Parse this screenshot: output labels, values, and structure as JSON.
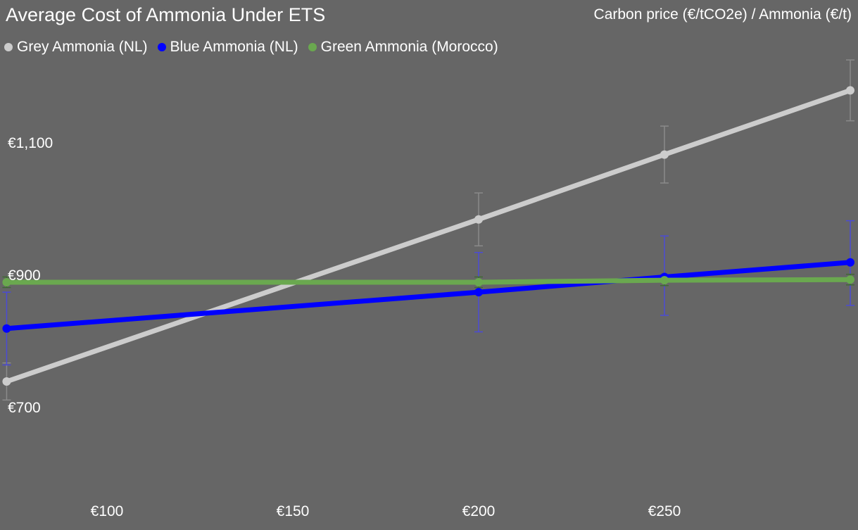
{
  "header": {
    "title": "Average Cost of Ammonia Under ETS",
    "subtitle": "Carbon price (€/tCO2e) / Ammonia (€/t)"
  },
  "legend": [
    {
      "label": "Grey Ammonia (NL)",
      "color": "#cccccc"
    },
    {
      "label": "Blue Ammonia (NL)",
      "color": "#0000ff"
    },
    {
      "label": "Green Ammonia (Morocco)",
      "color": "#6aa84f"
    }
  ],
  "axes": {
    "y_ticks": [
      {
        "value": 1100,
        "label": "€1,100"
      },
      {
        "value": 900,
        "label": "€900"
      },
      {
        "value": 700,
        "label": "€700"
      }
    ],
    "x_ticks": [
      {
        "value": 100,
        "label": "€100"
      },
      {
        "value": 150,
        "label": "€150"
      },
      {
        "value": 200,
        "label": "€200"
      },
      {
        "value": 250,
        "label": "€250"
      }
    ]
  },
  "chart_data": {
    "type": "line",
    "title": "Average Cost of Ammonia Under ETS",
    "subtitle": "Carbon price (€/tCO2e) / Ammonia (€/t)",
    "xlabel": "Carbon price (€/tCO2e)",
    "ylabel": "Ammonia (€/t)",
    "x": [
      73,
      200,
      250,
      300
    ],
    "xlim": [
      71,
      302
    ],
    "ylim": [
      580,
      1220
    ],
    "grid": false,
    "legend_position": "top-left",
    "x_tick_labels": [
      "€100",
      "€150",
      "€200",
      "€250"
    ],
    "y_tick_labels": [
      "€700",
      "€900",
      "€1,100"
    ],
    "series": [
      {
        "name": "Grey Ammonia (NL)",
        "color": "#cccccc",
        "values": [
          750,
          995,
          1093,
          1190
        ],
        "error": [
          [
            722,
            778
          ],
          [
            955,
            1035
          ],
          [
            1050,
            1136
          ],
          [
            1144,
            1236
          ]
        ]
      },
      {
        "name": "Blue Ammonia (NL)",
        "color": "#0000ff",
        "values": [
          830,
          885,
          908,
          930
        ],
        "error": [
          [
            775,
            885
          ],
          [
            825,
            945
          ],
          [
            850,
            970
          ],
          [
            865,
            993
          ]
        ]
      },
      {
        "name": "Green Ammonia (Morocco)",
        "color": "#6aa84f",
        "values": [
          900,
          900,
          903,
          904
        ],
        "error": [
          [
            892,
            908
          ],
          [
            892,
            908
          ],
          [
            895,
            911
          ],
          [
            896,
            912
          ]
        ]
      }
    ]
  }
}
